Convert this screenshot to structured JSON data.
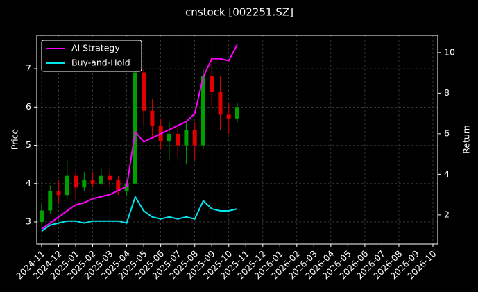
{
  "chart_data": {
    "type": "candlestick",
    "title": "cnstock [002251.SZ]",
    "ylabel": "Price",
    "y2label": "Return",
    "xticks": [
      "2024-11",
      "2024-12",
      "2025-01",
      "2025-02",
      "2025-03",
      "2025-04",
      "2025-05",
      "2025-06",
      "2025-07",
      "2025-08",
      "2025-09",
      "2025-10",
      "2025-11",
      "2025-12",
      "2026-01",
      "2026-02",
      "2026-03",
      "2026-04",
      "2026-05",
      "2026-06",
      "2026-07",
      "2026-08",
      "2026-09",
      "2026-10"
    ],
    "ylim": [
      2.42,
      7.87
    ],
    "yticks": [
      3,
      4,
      5,
      6,
      7
    ],
    "y2lim": [
      0.56,
      10.85
    ],
    "y2ticks": [
      2,
      4,
      6,
      8,
      10
    ],
    "grid": true,
    "legend": "upper-left",
    "up_color": "#00a000",
    "down_color": "#e00000",
    "candles": {
      "open": [
        3.0,
        3.3,
        3.8,
        3.7,
        4.2,
        3.9,
        4.1,
        4.0,
        4.2,
        4.1,
        3.8,
        4.0,
        6.9,
        5.9,
        5.5,
        5.1,
        5.3,
        5.0,
        5.4,
        5.0,
        6.8,
        6.4,
        5.8,
        5.7
      ],
      "high": [
        3.5,
        3.95,
        4.1,
        4.6,
        4.3,
        4.3,
        4.3,
        4.4,
        4.35,
        4.2,
        4.1,
        7.3,
        7.0,
        6.2,
        5.7,
        5.6,
        5.5,
        5.6,
        5.6,
        7.0,
        7.3,
        6.8,
        6.1,
        6.1
      ],
      "low": [
        2.9,
        3.2,
        3.5,
        3.6,
        3.6,
        3.8,
        3.9,
        3.95,
        3.9,
        3.7,
        3.7,
        4.0,
        5.5,
        5.2,
        4.9,
        4.6,
        4.7,
        4.5,
        4.6,
        4.9,
        6.0,
        5.4,
        5.3,
        5.6
      ],
      "close": [
        3.3,
        3.8,
        3.7,
        4.2,
        3.9,
        4.1,
        4.0,
        4.2,
        4.1,
        3.8,
        4.0,
        6.9,
        5.9,
        5.5,
        5.1,
        5.3,
        5.0,
        5.4,
        5.0,
        6.8,
        6.4,
        5.8,
        5.7,
        6.0
      ]
    },
    "series": [
      {
        "name": "AI Strategy",
        "color": "#ff00ff",
        "axis": "y2",
        "values": [
          1.3,
          1.6,
          1.9,
          2.2,
          2.5,
          2.6,
          2.8,
          2.9,
          3.0,
          3.2,
          3.4,
          6.1,
          5.6,
          5.8,
          6.0,
          6.2,
          6.4,
          6.6,
          7.0,
          8.8,
          9.7,
          9.7,
          9.6,
          10.4
        ]
      },
      {
        "name": "Buy-and-Hold",
        "color": "#00e5ee",
        "axis": "y2",
        "values": [
          1.2,
          1.5,
          1.6,
          1.7,
          1.7,
          1.6,
          1.7,
          1.7,
          1.7,
          1.7,
          1.6,
          2.9,
          2.2,
          1.9,
          1.8,
          1.9,
          1.8,
          1.9,
          1.8,
          2.7,
          2.3,
          2.2,
          2.2,
          2.3
        ]
      }
    ]
  }
}
